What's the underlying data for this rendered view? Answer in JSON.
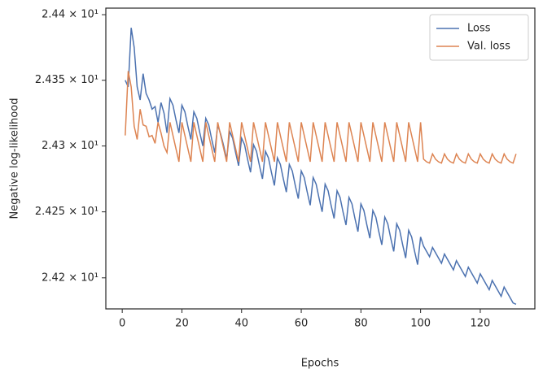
{
  "chart_data": {
    "type": "line",
    "xlabel": "Epochs",
    "ylabel": "Negative log-likelihood",
    "log_y": true,
    "grid": false,
    "legend": "upper right",
    "xlim": [
      -5.5,
      138.3
    ],
    "xticks": [
      0,
      20,
      40,
      60,
      80,
      100,
      120
    ],
    "ylim": [
      24.1765,
      24.405
    ],
    "yticks": [
      {
        "value": 24.2,
        "label": "2.42 × 10¹"
      },
      {
        "value": 24.25,
        "label": "2.425 × 10¹"
      },
      {
        "value": 24.3,
        "label": "2.43 × 10¹"
      },
      {
        "value": 24.35,
        "label": "2.435 × 10¹"
      },
      {
        "value": 24.4,
        "label": "2.44 × 10¹"
      }
    ],
    "x": [
      1,
      2,
      3,
      4,
      5,
      6,
      7,
      8,
      9,
      10,
      11,
      12,
      13,
      14,
      15,
      16,
      17,
      18,
      19,
      20,
      21,
      22,
      23,
      24,
      25,
      26,
      27,
      28,
      29,
      30,
      31,
      32,
      33,
      34,
      35,
      36,
      37,
      38,
      39,
      40,
      41,
      42,
      43,
      44,
      45,
      46,
      47,
      48,
      49,
      50,
      51,
      52,
      53,
      54,
      55,
      56,
      57,
      58,
      59,
      60,
      61,
      62,
      63,
      64,
      65,
      66,
      67,
      68,
      69,
      70,
      71,
      72,
      73,
      74,
      75,
      76,
      77,
      78,
      79,
      80,
      81,
      82,
      83,
      84,
      85,
      86,
      87,
      88,
      89,
      90,
      91,
      92,
      93,
      94,
      95,
      96,
      97,
      98,
      99,
      100,
      101,
      102,
      103,
      104,
      105,
      106,
      107,
      108,
      109,
      110,
      111,
      112,
      113,
      114,
      115,
      116,
      117,
      118,
      119,
      120,
      121,
      122,
      123,
      124,
      125,
      126,
      127,
      128,
      129,
      130,
      131,
      132
    ],
    "series": [
      {
        "name": "Loss",
        "color": "#4c72b0",
        "values": [
          24.35,
          24.345,
          24.39,
          24.375,
          24.345,
          24.335,
          24.355,
          24.34,
          24.335,
          24.328,
          24.33,
          24.318,
          24.333,
          24.325,
          24.31,
          24.336,
          24.331,
          24.32,
          24.31,
          24.331,
          24.326,
          24.315,
          24.305,
          24.326,
          24.321,
          24.31,
          24.3,
          24.321,
          24.316,
          24.305,
          24.295,
          24.316,
          24.309,
          24.3,
          24.29,
          24.311,
          24.306,
          24.295,
          24.285,
          24.306,
          24.301,
          24.29,
          24.28,
          24.301,
          24.296,
          24.285,
          24.275,
          24.296,
          24.291,
          24.28,
          24.27,
          24.291,
          24.286,
          24.275,
          24.265,
          24.286,
          24.281,
          24.27,
          24.26,
          24.281,
          24.276,
          24.265,
          24.255,
          24.276,
          24.271,
          24.26,
          24.25,
          24.271,
          24.266,
          24.255,
          24.245,
          24.266,
          24.261,
          24.25,
          24.24,
          24.261,
          24.256,
          24.245,
          24.235,
          24.256,
          24.251,
          24.24,
          24.23,
          24.251,
          24.246,
          24.235,
          24.225,
          24.246,
          24.241,
          24.23,
          24.22,
          24.241,
          24.236,
          24.225,
          24.215,
          24.236,
          24.231,
          24.22,
          24.21,
          24.231,
          24.224,
          24.22,
          24.216,
          24.223,
          24.219,
          24.215,
          24.211,
          24.218,
          24.214,
          24.21,
          24.206,
          24.213,
          24.209,
          24.205,
          24.201,
          24.208,
          24.204,
          24.2,
          24.196,
          24.203,
          24.199,
          24.195,
          24.191,
          24.198,
          24.194,
          24.19,
          24.186,
          24.193,
          24.189,
          24.185,
          24.181,
          24.18
        ]
      },
      {
        "name": "Val. loss",
        "color": "#dd8452",
        "values": [
          24.308,
          24.357,
          24.345,
          24.315,
          24.305,
          24.328,
          24.316,
          24.315,
          24.307,
          24.308,
          24.302,
          24.318,
          24.31,
          24.3,
          24.295,
          24.318,
          24.308,
          24.298,
          24.288,
          24.318,
          24.308,
          24.298,
          24.288,
          24.318,
          24.308,
          24.298,
          24.288,
          24.318,
          24.308,
          24.298,
          24.288,
          24.318,
          24.308,
          24.298,
          24.288,
          24.318,
          24.308,
          24.298,
          24.288,
          24.318,
          24.308,
          24.298,
          24.288,
          24.318,
          24.308,
          24.298,
          24.288,
          24.318,
          24.308,
          24.298,
          24.288,
          24.318,
          24.308,
          24.298,
          24.288,
          24.318,
          24.308,
          24.298,
          24.288,
          24.318,
          24.308,
          24.298,
          24.288,
          24.318,
          24.308,
          24.298,
          24.288,
          24.318,
          24.308,
          24.298,
          24.288,
          24.318,
          24.308,
          24.298,
          24.288,
          24.318,
          24.308,
          24.298,
          24.288,
          24.318,
          24.308,
          24.298,
          24.288,
          24.318,
          24.308,
          24.298,
          24.288,
          24.318,
          24.308,
          24.298,
          24.288,
          24.318,
          24.308,
          24.298,
          24.288,
          24.318,
          24.308,
          24.298,
          24.288,
          24.318,
          24.29,
          24.288,
          24.287,
          24.294,
          24.29,
          24.288,
          24.287,
          24.294,
          24.29,
          24.288,
          24.287,
          24.294,
          24.29,
          24.288,
          24.287,
          24.294,
          24.29,
          24.288,
          24.287,
          24.294,
          24.29,
          24.288,
          24.287,
          24.294,
          24.29,
          24.288,
          24.287,
          24.294,
          24.29,
          24.288,
          24.287,
          24.294
        ]
      }
    ]
  }
}
